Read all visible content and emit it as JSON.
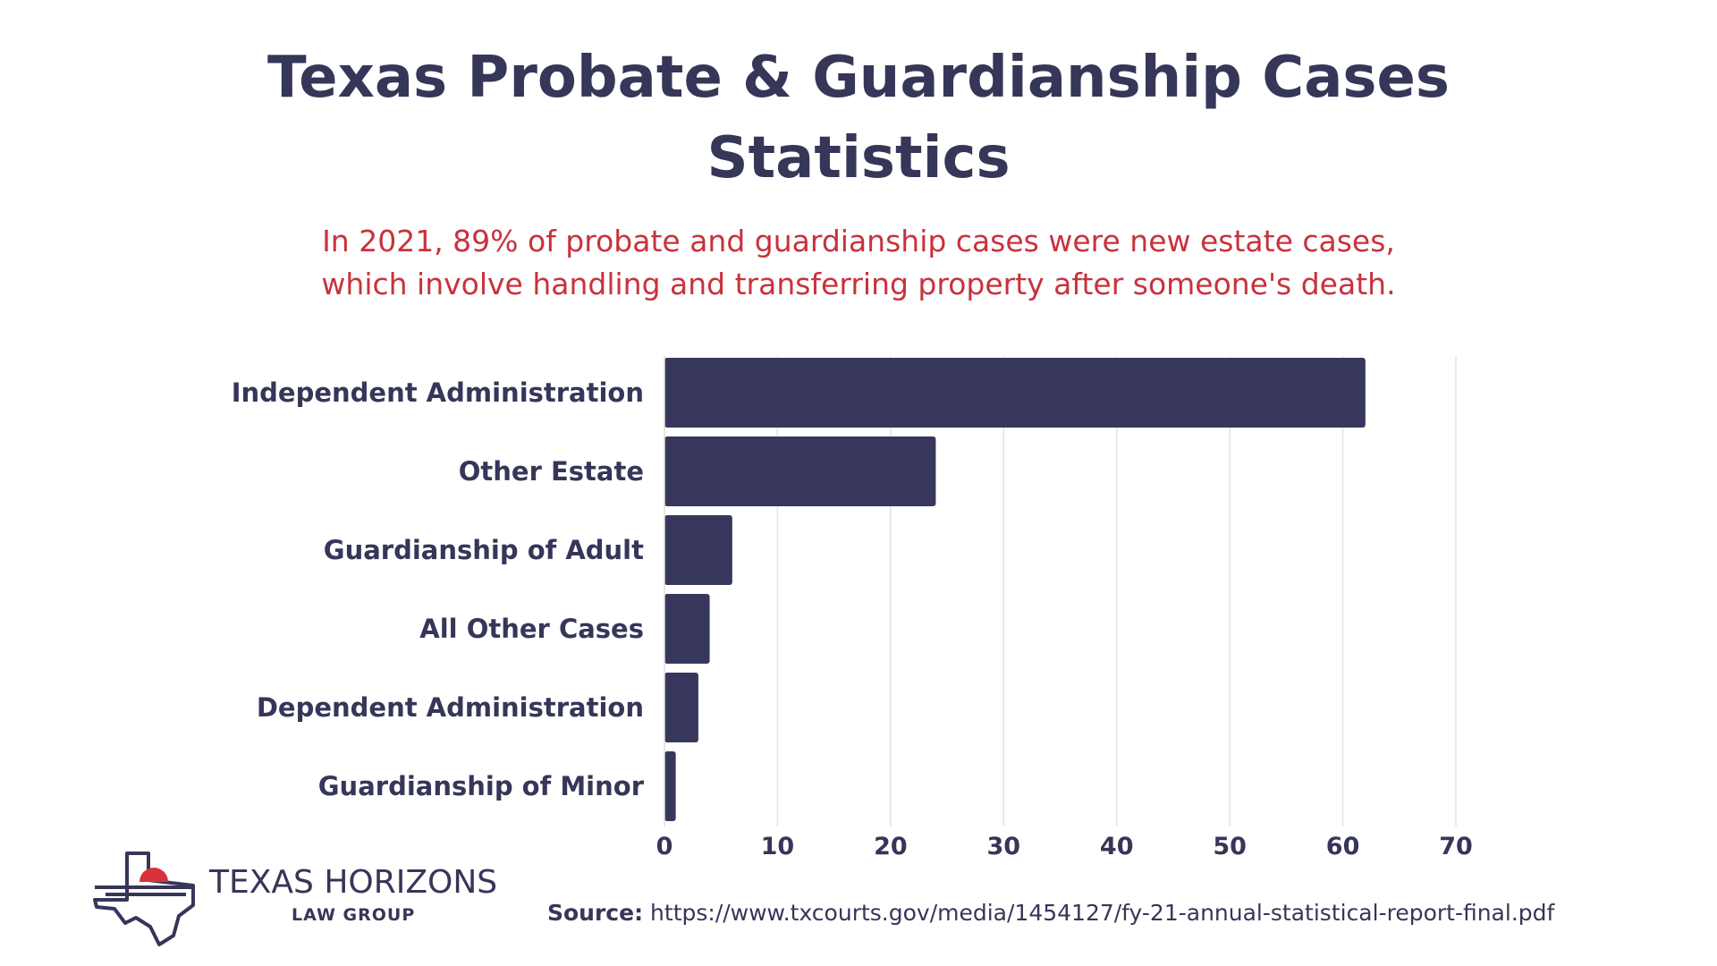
{
  "header": {
    "title_line1": "Texas Probate & Guardianship Cases",
    "title_line2": "Statistics",
    "subtitle_line1": "In 2021, 89% of probate and guardianship cases were new estate cases,",
    "subtitle_line2": "which involve handling and transferring property after someone's death."
  },
  "chart_data": {
    "type": "bar",
    "orientation": "horizontal",
    "title": "Texas Probate & Guardianship Cases Statistics",
    "subtitle": "In 2021, 89% of probate and guardianship cases were new estate cases, which involve handling and transferring property after someone's death.",
    "xlabel": "",
    "ylabel": "",
    "categories": [
      "Independent Administration",
      "Other Estate",
      "Guardianship of Adult",
      "All Other Cases",
      "Dependent Administration",
      "Guardianship of Minor"
    ],
    "values": [
      62,
      24,
      6,
      4,
      3,
      1
    ],
    "xlim": [
      0,
      70
    ],
    "xticks": [
      "0",
      "10",
      "20",
      "30",
      "40",
      "50",
      "60",
      "70"
    ],
    "grid": true,
    "legend": "none",
    "bar_color": "#37375e",
    "grid_color": "#e3e3e3"
  },
  "logo": {
    "name": "TEXAS HORIZONS",
    "sub": "LAW GROUP",
    "icon": "texas-map-sun-icon",
    "colors": {
      "navy": "#363659",
      "red": "#d8323c"
    }
  },
  "source": {
    "label": "Source:",
    "url": "https://www.txcourts.gov/media/1454127/fy-21-annual-statistical-report-final.pdf"
  },
  "colors": {
    "title": "#363659",
    "subtitle": "#c8323c",
    "background": "#ffffff"
  }
}
